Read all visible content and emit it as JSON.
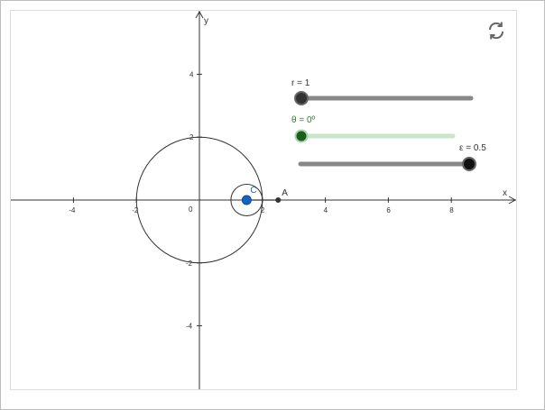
{
  "axes": {
    "x_name": "x",
    "y_name": "y",
    "x_ticks": [
      "-4",
      "-2",
      "2",
      "4",
      "6",
      "8"
    ],
    "y_ticks": [
      "4",
      "2",
      "-2",
      "-4"
    ],
    "origin_label": "0"
  },
  "points": {
    "C": {
      "label": "C",
      "x": 1.5,
      "y": 0,
      "color": "#1565C0"
    },
    "A": {
      "label": "A",
      "x": 2.5,
      "y": 0,
      "color": "#333333"
    }
  },
  "circles": {
    "big": {
      "cx": 0,
      "cy": 0,
      "r": 2
    },
    "small": {
      "cx": 1.5,
      "cy": 0,
      "r": 0.5
    }
  },
  "sliders": {
    "r": {
      "caption": "r = 1",
      "value_fraction": 0.0,
      "color": "#333333",
      "track": "#888888"
    },
    "theta": {
      "caption": "θ = 0º",
      "value_fraction": 0.0,
      "color": "#1B5E20",
      "track": "#C8E6C9",
      "caption_color": "#2E7D32"
    },
    "epsilon": {
      "caption": "ε = 0.5",
      "value_fraction": 1.0,
      "color": "#111111",
      "track": "#888888"
    }
  },
  "toolbar": {
    "reset_icon": "reset-icon"
  }
}
